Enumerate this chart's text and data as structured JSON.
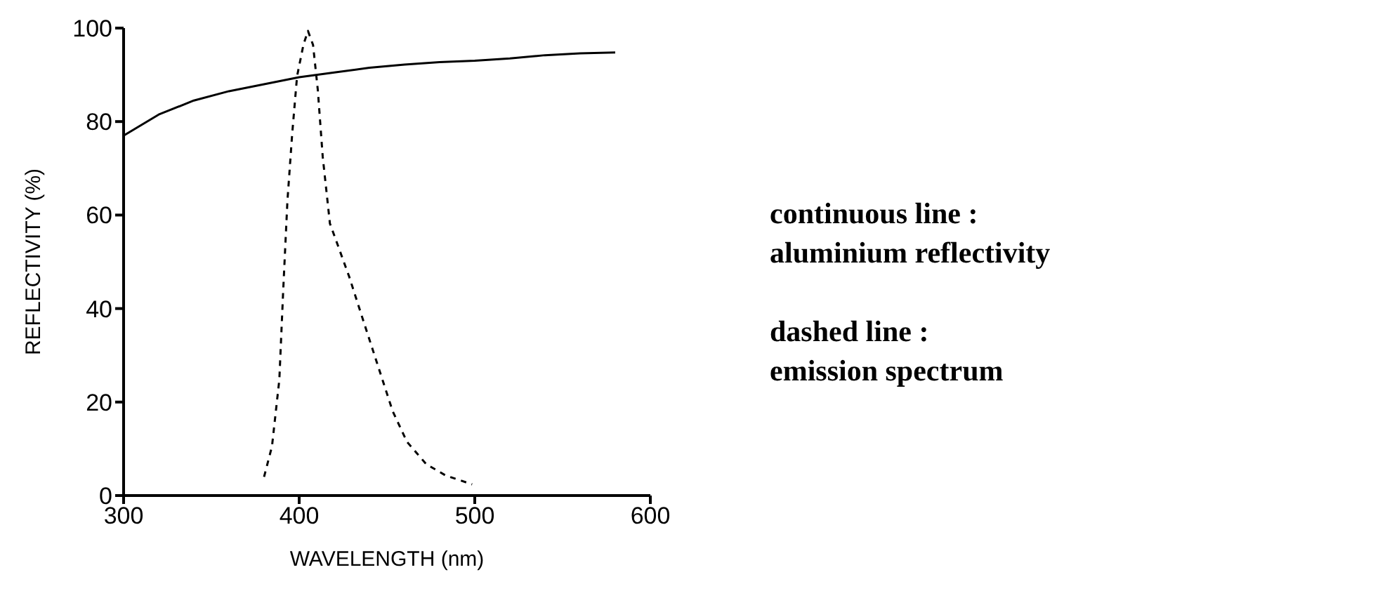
{
  "chart_data": {
    "type": "line",
    "xlabel": "WAVELENGTH (nm)",
    "ylabel": "REFLECTIVITY (%)",
    "xlim": [
      300,
      600
    ],
    "xticks": [
      300,
      400,
      500,
      600
    ],
    "ylim": [
      0,
      100
    ],
    "yticks": [
      0,
      20,
      40,
      60,
      80,
      100
    ],
    "grid": false,
    "legend": false,
    "marker": "none",
    "series": [
      {
        "color": "#000000",
        "line_style": "solid",
        "x": [
          300,
          320,
          340,
          360,
          380,
          400,
          420,
          440,
          460,
          480,
          500,
          520,
          540,
          560,
          580
        ],
        "values": [
          77,
          81.5,
          84.5,
          86.5,
          88,
          89.5,
          90.5,
          91.5,
          92.2,
          92.7,
          93,
          93.5,
          94.2,
          94.6,
          94.8
        ]
      },
      {
        "color": "#000000",
        "line_style": "dashed",
        "x": [
          380,
          384.5,
          388.7,
          390.9,
          393.3,
          396,
          398.8,
          402.4,
          405,
          407.9,
          410.6,
          413.4,
          417.5,
          428.5,
          436.7,
          444.9,
          453.2,
          461.4,
          472.4,
          483.4,
          498.5
        ],
        "values": [
          4,
          10.5,
          24.8,
          43.9,
          63,
          77.3,
          89.7,
          96.4,
          99.4,
          96.4,
          86.8,
          72.5,
          58.2,
          46.8,
          37.2,
          27.7,
          18.1,
          11.5,
          6.7,
          4.3,
          2.4
        ]
      }
    ],
    "annotations": [
      "continuous line :",
      "aluminium reflectivity",
      "dashed line :",
      "emission spectrum"
    ]
  }
}
